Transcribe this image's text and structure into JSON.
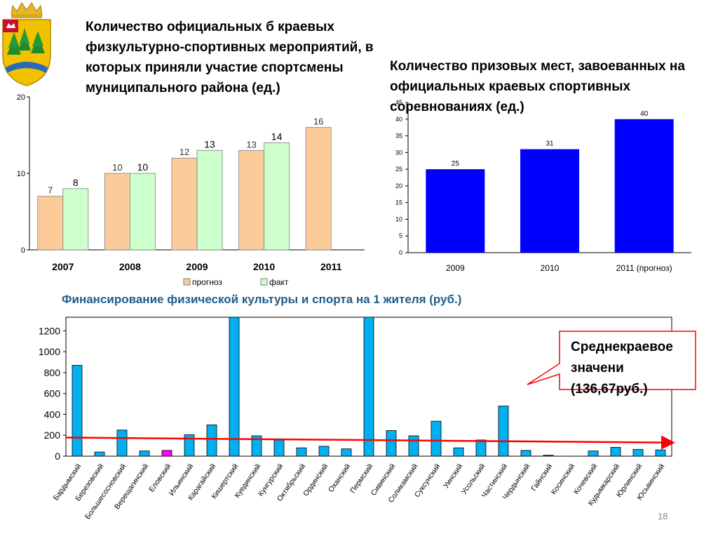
{
  "slide": {
    "title_left": "Количество официальных б краевых физкультурно-спортивных мероприятий, в которых приняли участие спортсмены муниципального района (ед.)",
    "title_right": "Количество призовых мест, завоеванных на официальных краевых спортивных соревнованиях (ед.)",
    "title_bottom": "Финансирование физической культуры и спорта на 1 жителя (руб.)",
    "callout": "Среднекраевое значени (136,67руб.)",
    "page_number": "18"
  },
  "colors": {
    "forecast": "#FCCB9A",
    "fact": "#CCFFCC",
    "blue_bar": "#0000FF",
    "cyan_bar": "#00B0F0",
    "highlight_bar": "#FF00FF",
    "trend_line": "#FF0000",
    "callout_border": "#FF0000"
  },
  "chart_data": [
    {
      "type": "bar",
      "categories": [
        "2007",
        "2008",
        "2009",
        "2010",
        "2011"
      ],
      "series": [
        {
          "name": "прогноз",
          "values": [
            7,
            10,
            12,
            13,
            16
          ]
        },
        {
          "name": "факт",
          "values": [
            8,
            10,
            13,
            14,
            null
          ]
        }
      ],
      "yticks": [
        0,
        10,
        20
      ],
      "ylim": [
        0,
        20
      ],
      "legend": "bottom"
    },
    {
      "type": "bar",
      "categories": [
        "2009",
        "2010",
        "2011 (прогноз)"
      ],
      "values": [
        25,
        31,
        40
      ],
      "yticks": [
        0,
        5,
        10,
        15,
        20,
        25,
        30,
        35,
        40,
        45
      ],
      "ylim": [
        0,
        45
      ]
    },
    {
      "type": "bar",
      "categories": [
        "Бардымский",
        "Березовский",
        "Большесосновский",
        "Верещагинский",
        "Еловский",
        "Ильинский",
        "Карагайский",
        "Кишертский",
        "Куединский",
        "Кунгурский",
        "Октябрьский",
        "Ординский",
        "Оханский",
        "Пермский",
        "Сивинский",
        "Соликамский",
        "Суксунский",
        "Уинский",
        "Усольский",
        "Частинский",
        "Чердынский",
        "Гайнский",
        "Косинский",
        "Кочевский",
        "Кудымкарский",
        "Юрлинский",
        "Юсьвинский"
      ],
      "values": [
        870,
        40,
        250,
        50,
        55,
        205,
        300,
        1330,
        195,
        155,
        80,
        95,
        70,
        1330,
        245,
        195,
        335,
        80,
        155,
        480,
        55,
        10,
        0,
        50,
        85,
        65,
        60
      ],
      "highlight": "Еловский",
      "trend": {
        "start": 178,
        "end": 130
      },
      "yticks": [
        0,
        200,
        400,
        600,
        800,
        1000,
        1200
      ],
      "ylim": [
        0,
        1330
      ]
    }
  ]
}
